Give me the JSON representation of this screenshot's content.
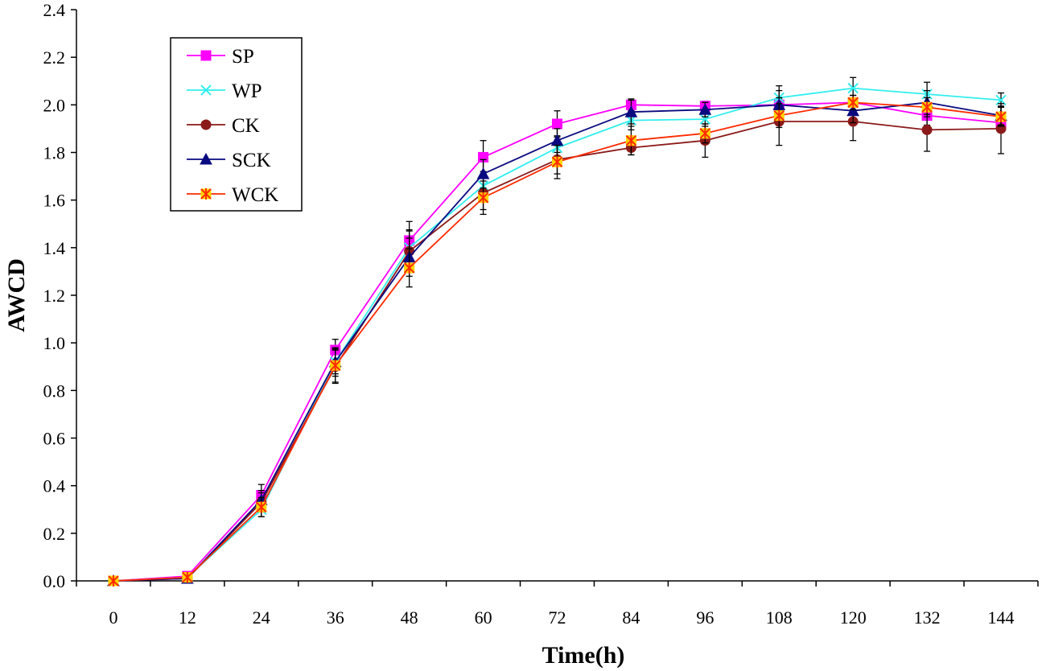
{
  "chart_data": {
    "type": "line",
    "title": "",
    "xlabel": "Time(h)",
    "ylabel": "AWCD",
    "x": [
      0,
      12,
      24,
      36,
      48,
      60,
      72,
      84,
      96,
      108,
      120,
      132,
      144
    ],
    "xlim": [
      -6,
      150
    ],
    "ylim": [
      0,
      2.4
    ],
    "yticks": [
      0.0,
      0.2,
      0.4,
      0.6,
      0.8,
      1.0,
      1.2,
      1.4,
      1.6,
      1.8,
      2.0,
      2.2,
      2.4
    ],
    "ytick_labels": [
      "0.0",
      "0.2",
      "0.4",
      "0.6",
      "0.8",
      "1.0",
      "1.2",
      "1.4",
      "1.6",
      "1.8",
      "2.0",
      "2.2",
      "2.4"
    ],
    "xtick_labels": [
      "0",
      "12",
      "24",
      "36",
      "48",
      "60",
      "72",
      "84",
      "96",
      "108",
      "120",
      "132",
      "144"
    ],
    "grid": false,
    "legend_position": "top-left",
    "series": [
      {
        "name": "SP",
        "color": "#ff00ff",
        "marker": "square",
        "values": [
          0.0,
          0.02,
          0.36,
          0.97,
          1.43,
          1.78,
          1.92,
          2.0,
          1.995,
          2.0,
          2.01,
          1.955,
          1.925
        ],
        "errors": [
          0.0,
          0.01,
          0.045,
          0.045,
          0.08,
          0.07,
          0.055,
          0.025,
          0.02,
          0.025,
          0.03,
          0.04,
          0.025
        ]
      },
      {
        "name": "WP",
        "color": "#33eeee",
        "marker": "x",
        "values": [
          0.0,
          0.015,
          0.3,
          0.92,
          1.4,
          1.66,
          1.82,
          1.935,
          1.94,
          2.03,
          2.07,
          2.045,
          2.02
        ],
        "errors": [
          0.0,
          0.01,
          0.03,
          0.05,
          0.07,
          0.06,
          0.05,
          0.04,
          0.03,
          0.05,
          0.045,
          0.05,
          0.03
        ]
      },
      {
        "name": "CK",
        "color": "#8b1a1a",
        "marker": "circle",
        "values": [
          0.0,
          0.01,
          0.33,
          0.9,
          1.385,
          1.63,
          1.77,
          1.82,
          1.85,
          1.93,
          1.93,
          1.895,
          1.9
        ],
        "errors": [
          0.0,
          0.01,
          0.04,
          0.07,
          0.09,
          0.07,
          0.06,
          0.03,
          0.07,
          0.1,
          0.08,
          0.09,
          0.105
        ]
      },
      {
        "name": "SCK",
        "color": "#0a0a80",
        "marker": "triangle",
        "values": [
          0.0,
          0.01,
          0.34,
          0.92,
          1.36,
          1.71,
          1.85,
          1.97,
          1.98,
          2.0,
          1.975,
          2.01,
          1.955
        ],
        "errors": [
          0.0,
          0.01,
          0.04,
          0.06,
          0.08,
          0.06,
          0.05,
          0.05,
          0.03,
          0.06,
          0.05,
          0.05,
          0.04
        ]
      },
      {
        "name": "WCK",
        "color": "#ff2a00",
        "marker": "asterisk-square",
        "values": [
          0.0,
          0.015,
          0.31,
          0.905,
          1.315,
          1.61,
          1.76,
          1.85,
          1.88,
          1.955,
          2.01,
          1.99,
          1.95
        ],
        "errors": [
          0.0,
          0.01,
          0.04,
          0.07,
          0.08,
          0.07,
          0.07,
          0.06,
          0.04,
          0.05,
          0.03,
          0.04,
          0.04
        ]
      }
    ]
  }
}
